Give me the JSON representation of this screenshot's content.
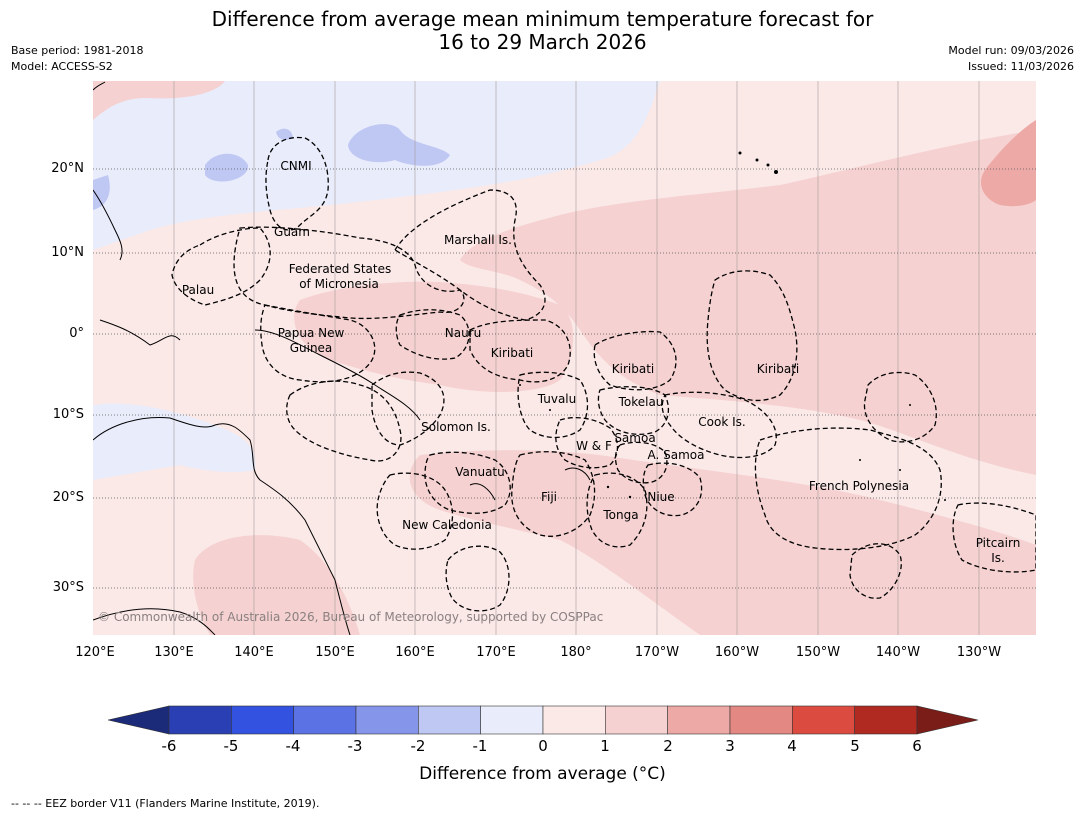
{
  "title": {
    "line1": "Difference from average mean minimum temperature forecast for",
    "line2": "16 to 29 March 2026"
  },
  "meta_left": {
    "base_period": "Base period: 1981-2018",
    "model": "Model: ACCESS-S2"
  },
  "meta_right": {
    "model_run": "Model run: 09/03/2026",
    "issued": "Issued: 11/03/2026"
  },
  "map": {
    "lon_ticks": [
      "120°E",
      "130°E",
      "140°E",
      "150°E",
      "160°E",
      "170°E",
      "180°",
      "170°W",
      "160°W",
      "150°W",
      "140°W",
      "130°W"
    ],
    "lat_ticks": [
      "20°N",
      "10°N",
      "0°",
      "10°S",
      "20°S",
      "30°S"
    ],
    "regions": {
      "cnmi": "CNMI",
      "guam": "Guam",
      "marshall": "Marshall Is.",
      "fsm_1": "Federated States",
      "fsm_2": "of Micronesia",
      "palau": "Palau",
      "png_1": "Papua New",
      "png_2": "Guinea",
      "nauru": "Nauru",
      "kiribati_w": "Kiribati",
      "kiribati_c": "Kiribati",
      "kiribati_e": "Kiribati",
      "tuvalu": "Tuvalu",
      "tokelau": "Tokelau",
      "solomon": "Solomon Is.",
      "wf": "W & F",
      "samoa": "Samoa",
      "asamoa": "A. Samoa",
      "cook": "Cook Is.",
      "vanuatu": "Vanuatu",
      "fiji": "Fiji",
      "niue": "Niue",
      "tonga": "Tonga",
      "frpoly": "French Polynesia",
      "newcal": "New Caledonia",
      "pitcairn_1": "Pitcairn",
      "pitcairn_2": "Is."
    },
    "copyright": "© Commonwealth of Australia 2026, Bureau of Meteorology, supported by COSPPac"
  },
  "colorbar": {
    "ticks": [
      "-6",
      "-5",
      "-4",
      "-3",
      "-2",
      "-1",
      "0",
      "1",
      "2",
      "3",
      "4",
      "5",
      "6"
    ],
    "label": "Difference from average (°C)",
    "colors": [
      "#1c2a7a",
      "#2a3fb3",
      "#3352e0",
      "#5a72e4",
      "#8595ea",
      "#bfc7f3",
      "#e8ecfb",
      "#fbe9e8",
      "#f5d2d1",
      "#eda9a6",
      "#e48883",
      "#db4b3f",
      "#b02a22",
      "#7a1c18"
    ]
  },
  "footer": "-- -- -- EEZ border V11 (Flanders Marine Institute, 2019)."
}
